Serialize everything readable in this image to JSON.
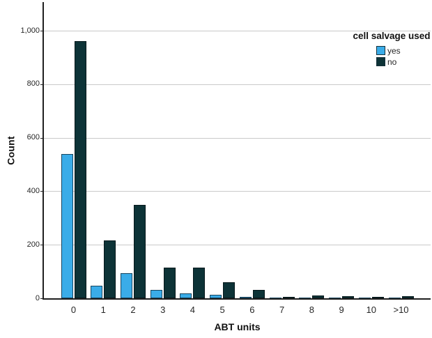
{
  "figure": {
    "background": "#ffffff"
  },
  "chart_data": {
    "type": "bar",
    "title": "",
    "xlabel": "ABT units",
    "ylabel": "Count",
    "categories": [
      "0",
      "1",
      "2",
      "3",
      "4",
      "5",
      "6",
      "7",
      "8",
      "9",
      "10",
      ">10"
    ],
    "series": [
      {
        "name": "yes",
        "color": "#3aace8",
        "border_color": "#16455f",
        "values": [
          540,
          48,
          95,
          30,
          18,
          12,
          5,
          2,
          2,
          2,
          1,
          1
        ]
      },
      {
        "name": "no",
        "color": "#0d3337",
        "border_color": "#06181b",
        "values": [
          960,
          215,
          350,
          115,
          115,
          60,
          32,
          5,
          10,
          8,
          5,
          8
        ]
      }
    ],
    "ylim": [
      0,
      1100
    ],
    "y_ticks": {
      "labels": [
        "0",
        "200",
        "400",
        "600",
        "800",
        "1,000"
      ],
      "values": [
        0,
        200,
        400,
        600,
        800,
        1000
      ]
    },
    "grid": "horizontal",
    "gridline_color": "#c9c9c9",
    "axis_color": "#1f1f1f",
    "legend": {
      "title": "cell salvage used",
      "position": "top-right"
    }
  }
}
